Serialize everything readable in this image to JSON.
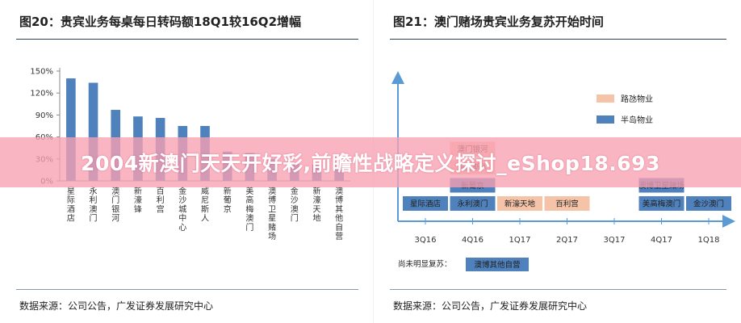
{
  "chart_data": [
    {
      "type": "bar",
      "title": "图20：贵宾业务每桌每日转码额18Q1较16Q2增幅",
      "source": "数据来源：公司公告，广发证券发展研究中心",
      "categories": [
        "星际酒店",
        "永利澳门",
        "澳门银河",
        "新濠锋",
        "百利宫",
        "金沙城中心",
        "威尼斯人",
        "新葡京",
        "美高梅澳门",
        "澳博卫星赌场",
        "金沙澳门",
        "新濠天地",
        "澳博其他自营"
      ],
      "values": [
        140,
        134,
        97,
        88,
        86,
        75,
        75,
        40,
        38,
        30,
        24,
        22,
        20
      ],
      "ylim": [
        0,
        150
      ],
      "yticks": [
        "0%",
        "30%",
        "60%",
        "90%",
        "120%",
        "150%"
      ],
      "ytick_values": [
        0,
        30,
        60,
        90,
        120,
        150
      ],
      "bar_color": "#4f81bd",
      "grid": false,
      "xlabel": "",
      "ylabel": ""
    },
    {
      "type": "timeline",
      "title": "图21：澳门赌场贵宾业务复苏开始时间",
      "source": "数据来源：公司公告，广发证券发展研究中心",
      "quarters": [
        "3Q16",
        "4Q16",
        "1Q17",
        "2Q17",
        "3Q17",
        "4Q17",
        "1Q18"
      ],
      "legend": [
        {
          "label": "路氹物业",
          "color": "#f4c3a8"
        },
        {
          "label": "半岛物业",
          "color": "#4f81bd"
        }
      ],
      "items": [
        {
          "label": "星际酒店",
          "quarter": "3Q16",
          "level": 0,
          "region": "半岛物业"
        },
        {
          "label": "永利澳门",
          "quarter": "4Q16",
          "level": 0,
          "region": "半岛物业"
        },
        {
          "label": "新葡京",
          "quarter": "4Q16",
          "level": 1,
          "region": "半岛物业"
        },
        {
          "label": "威尼斯人",
          "quarter": "4Q16",
          "level": 2,
          "region": "路氹物业"
        },
        {
          "label": "澳门银河",
          "quarter": "4Q16",
          "level": 3,
          "region": "路氹物业"
        },
        {
          "label": "新濠天地",
          "quarter": "1Q17",
          "level": 0,
          "region": "路氹物业"
        },
        {
          "label": "百利宫",
          "quarter": "2Q17",
          "level": 0,
          "region": "路氹物业"
        },
        {
          "label": "美高梅澳门",
          "quarter": "4Q17",
          "level": 0,
          "region": "半岛物业"
        },
        {
          "label": "澳博卫星赌场",
          "quarter": "4Q17",
          "level": 1,
          "region": "半岛物业"
        },
        {
          "label": "金沙澳门",
          "quarter": "1Q18",
          "level": 0,
          "region": "半岛物业"
        }
      ],
      "note_label": "尚未明显复苏：",
      "note_item": {
        "label": "澳博其他自营",
        "region": "半岛物业"
      }
    }
  ],
  "watermark": "2004新澳门天天开好彩,前瞻性战略定义探讨_eShop18.693"
}
